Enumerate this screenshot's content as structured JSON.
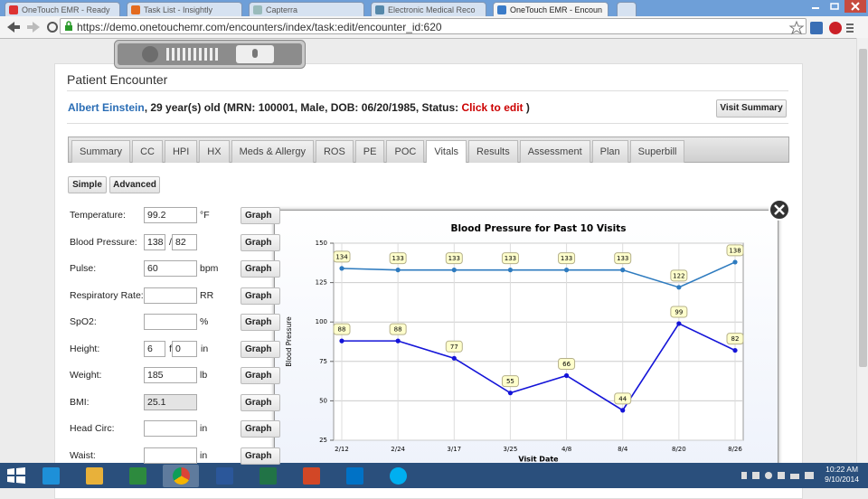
{
  "browser": {
    "tabs": [
      "OneTouch EMR - Ready",
      "Task List - Insightly",
      "Capterra",
      "Electronic Medical Reco",
      "OneTouch EMR - Encoun"
    ],
    "active_tab": 4,
    "url": "https://demo.onetouchemr.com/encounters/index/task:edit/encounter_id:620"
  },
  "page": {
    "title": "Patient Encounter",
    "patient": {
      "name": "Albert  Einstein",
      "details": ", 29 year(s) old (MRN: 100001, Male, DOB: 06/20/1985, Status:",
      "status": "Click to edit",
      "suffix": ")"
    },
    "visit_summary": "Visit Summary",
    "tabs": [
      "Summary",
      "CC",
      "HPI",
      "HX",
      "Meds & Allergy",
      "ROS",
      "PE",
      "POC",
      "Vitals",
      "Results",
      "Assessment",
      "Plan",
      "Superbill"
    ],
    "active_tab": 8,
    "modes": [
      "Simple",
      "Advanced"
    ],
    "vitals": {
      "graph_button": "Graph",
      "rows": [
        {
          "label": "Temperature:",
          "values": [
            "99.2"
          ],
          "units": [
            "°F"
          ]
        },
        {
          "label": "Blood Pressure:",
          "values": [
            "138",
            "82"
          ],
          "units": [
            "/"
          ]
        },
        {
          "label": "Pulse:",
          "values": [
            "60"
          ],
          "units": [
            "bpm"
          ]
        },
        {
          "label": "Respiratory Rate:",
          "units": [
            "RR"
          ]
        },
        {
          "label": "SpO2:",
          "units": [
            "%"
          ]
        },
        {
          "label": "Height:",
          "values": [
            "6",
            "0"
          ],
          "units": [
            "ft",
            "in"
          ]
        },
        {
          "label": "Weight:",
          "values": [
            "185"
          ],
          "units": [
            "lb"
          ]
        },
        {
          "label": "BMI:",
          "values": [
            "25.1"
          ],
          "readonly": true
        },
        {
          "label": "Head Circ:",
          "units": [
            "in"
          ]
        },
        {
          "label": "Waist:",
          "units": [
            "in"
          ]
        }
      ]
    }
  },
  "chart_data": {
    "type": "line",
    "title": "Blood Pressure for Past 10 Visits",
    "x_label": "Visit Date",
    "y_label": "Blood Pressure",
    "categories": [
      "2/12",
      "2/24",
      "3/17",
      "3/25",
      "4/8",
      "8/4",
      "8/20",
      "8/26"
    ],
    "series": [
      {
        "color": "#2e7bbf",
        "values": [
          134,
          133,
          133,
          133,
          133,
          133,
          122,
          138
        ]
      },
      {
        "color": "#1414d8",
        "values": [
          88,
          88,
          77,
          55,
          66,
          44,
          99,
          82
        ]
      }
    ],
    "ylim": [
      25,
      150
    ],
    "yticks": [
      25,
      50,
      75,
      100,
      125,
      150
    ],
    "grid": true,
    "value_labels_shown": true
  },
  "taskbar": {
    "time": "10:22 AM",
    "date": "9/10/2014"
  }
}
